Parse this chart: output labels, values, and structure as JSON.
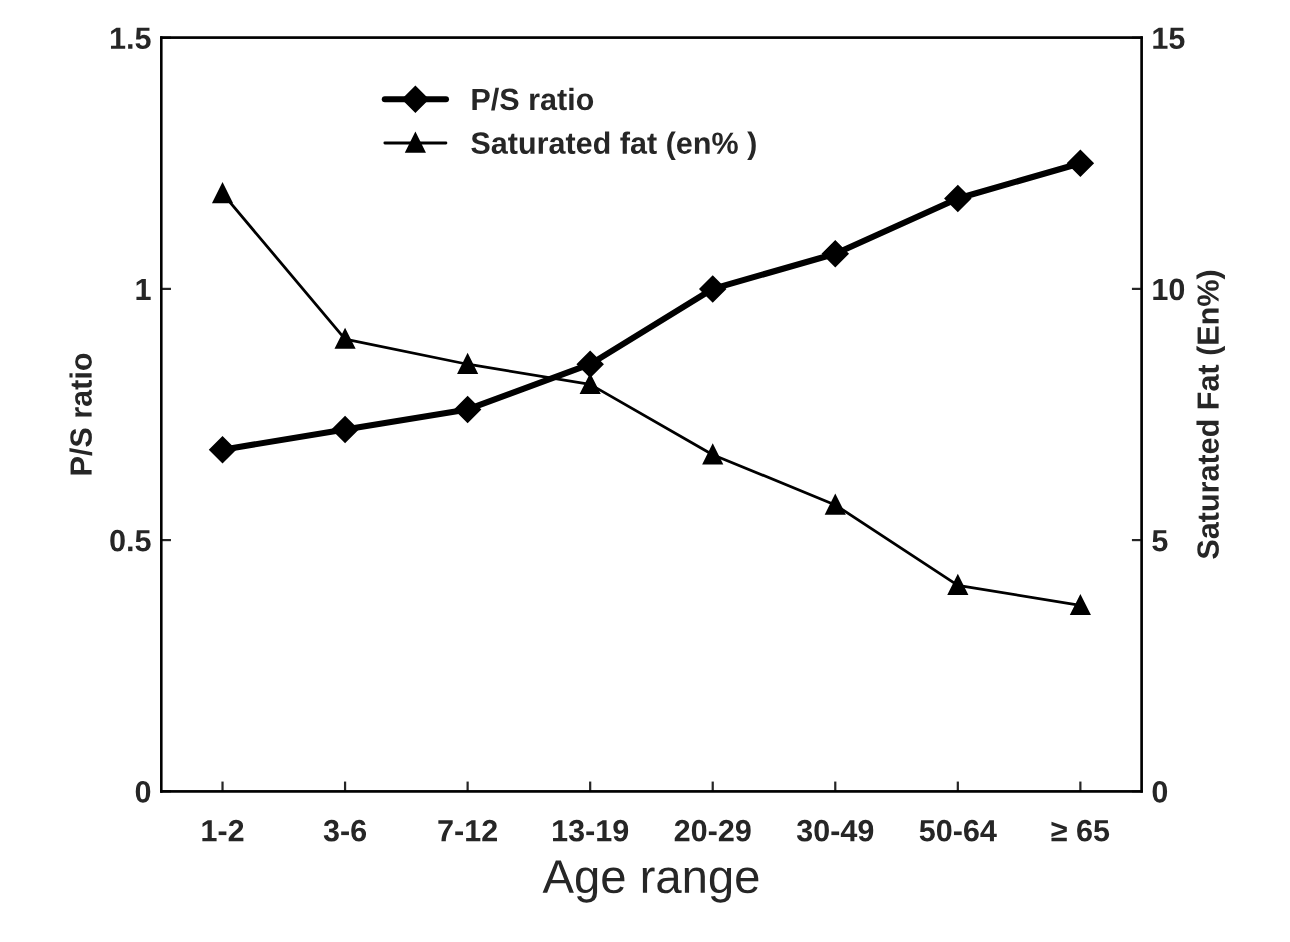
{
  "chart_data": {
    "type": "line",
    "xlabel": "Age range",
    "ylabel": "P/S ratio",
    "y2label": "Saturated Fat (En%)",
    "categories": [
      "1-2",
      "3-6",
      "7-12",
      "13-19",
      "20-29",
      "30-49",
      "50-64",
      "≥ 65"
    ],
    "series": [
      {
        "name": "P/S ratio",
        "color": "#000000",
        "marker": "diamond",
        "values": [
          0.68,
          0.72,
          0.76,
          0.85,
          1.0,
          1.07,
          1.18,
          1.25
        ]
      },
      {
        "name": "Saturated fat (en% )",
        "color": "#000000",
        "marker": "triangle",
        "axis": "y2",
        "values": [
          11.9,
          9.0,
          8.5,
          8.1,
          6.7,
          5.7,
          4.1,
          3.7
        ]
      }
    ],
    "ylim": [
      0,
      1.5
    ],
    "yticks": [
      0,
      0.5,
      1,
      1.5
    ],
    "y2lim": [
      0,
      15
    ],
    "y2ticks": [
      0,
      5,
      10,
      15
    ],
    "grid": false,
    "legend": "top left",
    "line_style": "solid"
  }
}
